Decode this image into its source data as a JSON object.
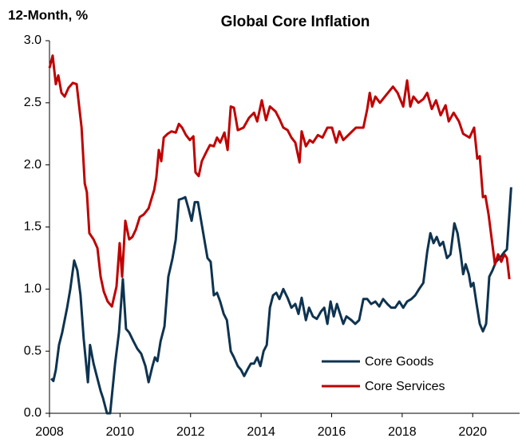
{
  "chart_data": {
    "type": "line",
    "title": "Global Core Inflation",
    "y_label": "12-Month, %",
    "xlim": [
      2008,
      2021.33
    ],
    "xticks": [
      2008,
      2010,
      2012,
      2014,
      2016,
      2018,
      2020
    ],
    "ylim": [
      0,
      3
    ],
    "yticks": [
      {
        "value": 0,
        "label": "0.0"
      },
      0.5,
      {
        "value": 1,
        "label": "1.0"
      },
      1.5,
      {
        "value": 2,
        "label": "2.0"
      },
      2.5,
      {
        "value": 3,
        "label": "3.0"
      }
    ],
    "grid": false,
    "legend": "lower right",
    "series": [
      {
        "name": "Core Goods",
        "color": "#0e3350",
        "x": [
          2008.05,
          2008.11,
          2008.18,
          2008.27,
          2008.36,
          2008.5,
          2008.59,
          2008.7,
          2008.79,
          2008.88,
          2008.97,
          2009.09,
          2009.15,
          2009.25,
          2009.34,
          2009.45,
          2009.52,
          2009.63,
          2009.72,
          2009.86,
          2009.97,
          2010.08,
          2010.17,
          2010.26,
          2010.38,
          2010.49,
          2010.6,
          2010.72,
          2010.81,
          2010.92,
          2010.99,
          2011.06,
          2011.15,
          2011.26,
          2011.37,
          2011.49,
          2011.58,
          2011.67,
          2011.78,
          2011.85,
          2011.94,
          2012.03,
          2012.12,
          2012.21,
          2012.3,
          2012.39,
          2012.48,
          2012.57,
          2012.66,
          2012.75,
          2012.84,
          2012.94,
          2013.03,
          2013.14,
          2013.23,
          2013.34,
          2013.43,
          2013.52,
          2013.61,
          2013.71,
          2013.8,
          2013.89,
          2013.98,
          2014.07,
          2014.16,
          2014.25,
          2014.34,
          2014.43,
          2014.52,
          2014.63,
          2014.75,
          2014.86,
          2014.97,
          2015.06,
          2015.15,
          2015.27,
          2015.36,
          2015.47,
          2015.58,
          2015.7,
          2015.79,
          2015.88,
          2015.97,
          2016.06,
          2016.15,
          2016.24,
          2016.33,
          2016.42,
          2016.56,
          2016.67,
          2016.78,
          2016.9,
          2017.01,
          2017.12,
          2017.24,
          2017.35,
          2017.46,
          2017.58,
          2017.69,
          2017.8,
          2017.92,
          2018.03,
          2018.14,
          2018.26,
          2018.37,
          2018.48,
          2018.6,
          2018.71,
          2018.8,
          2018.89,
          2018.98,
          2019.07,
          2019.16,
          2019.27,
          2019.37,
          2019.48,
          2019.57,
          2019.66,
          2019.73,
          2019.8,
          2019.89,
          2019.95,
          2020.02,
          2020.11,
          2020.2,
          2020.29,
          2020.38,
          2020.47,
          2020.56,
          2020.66,
          2020.77,
          2020.9,
          2020.97,
          2021.09
        ],
        "values": [
          0.28,
          0.26,
          0.35,
          0.55,
          0.65,
          0.85,
          1.0,
          1.23,
          1.15,
          0.95,
          0.6,
          0.25,
          0.55,
          0.4,
          0.3,
          0.18,
          0.12,
          0.0,
          0.0,
          0.4,
          0.65,
          1.08,
          0.68,
          0.65,
          0.58,
          0.52,
          0.48,
          0.38,
          0.25,
          0.38,
          0.45,
          0.42,
          0.58,
          0.7,
          1.1,
          1.25,
          1.4,
          1.72,
          1.73,
          1.74,
          1.65,
          1.55,
          1.7,
          1.7,
          1.55,
          1.4,
          1.25,
          1.22,
          0.95,
          0.97,
          0.9,
          0.8,
          0.75,
          0.5,
          0.45,
          0.38,
          0.35,
          0.3,
          0.35,
          0.4,
          0.4,
          0.45,
          0.38,
          0.5,
          0.55,
          0.85,
          0.95,
          0.97,
          0.92,
          1.0,
          0.93,
          0.85,
          0.88,
          0.8,
          0.93,
          0.75,
          0.85,
          0.78,
          0.76,
          0.82,
          0.85,
          0.72,
          0.9,
          0.78,
          0.88,
          0.8,
          0.72,
          0.78,
          0.75,
          0.72,
          0.75,
          0.92,
          0.92,
          0.88,
          0.9,
          0.86,
          0.92,
          0.88,
          0.85,
          0.85,
          0.9,
          0.85,
          0.9,
          0.92,
          0.95,
          1.0,
          1.05,
          1.3,
          1.45,
          1.37,
          1.42,
          1.35,
          1.38,
          1.25,
          1.28,
          1.53,
          1.45,
          1.28,
          1.12,
          1.2,
          1.12,
          1.02,
          1.05,
          0.88,
          0.72,
          0.66,
          0.72,
          1.1,
          1.15,
          1.22,
          1.25,
          1.3,
          1.32,
          1.82
        ]
      },
      {
        "name": "Core Services",
        "color": "#c00000",
        "x": [
          2008.0,
          2008.09,
          2008.18,
          2008.25,
          2008.34,
          2008.43,
          2008.54,
          2008.66,
          2008.77,
          2008.91,
          2009.0,
          2009.06,
          2009.13,
          2009.25,
          2009.36,
          2009.45,
          2009.54,
          2009.65,
          2009.77,
          2009.9,
          2009.99,
          2010.06,
          2010.15,
          2010.26,
          2010.35,
          2010.45,
          2010.56,
          2010.67,
          2010.81,
          2010.97,
          2011.03,
          2011.1,
          2011.17,
          2011.24,
          2011.35,
          2011.46,
          2011.58,
          2011.67,
          2011.76,
          2011.87,
          2011.98,
          2012.08,
          2012.14,
          2012.23,
          2012.32,
          2012.44,
          2012.55,
          2012.66,
          2012.75,
          2012.84,
          2012.96,
          2013.05,
          2013.14,
          2013.23,
          2013.34,
          2013.5,
          2013.66,
          2013.8,
          2013.89,
          2014.02,
          2014.14,
          2014.25,
          2014.41,
          2014.52,
          2014.63,
          2014.75,
          2014.86,
          2014.97,
          2015.09,
          2015.15,
          2015.27,
          2015.38,
          2015.47,
          2015.61,
          2015.74,
          2015.88,
          2016.01,
          2016.13,
          2016.22,
          2016.33,
          2016.51,
          2016.69,
          2016.9,
          2017.01,
          2017.08,
          2017.15,
          2017.24,
          2017.37,
          2017.51,
          2017.74,
          2017.87,
          2018.03,
          2018.14,
          2018.23,
          2018.32,
          2018.46,
          2018.6,
          2018.71,
          2018.84,
          2018.96,
          2019.09,
          2019.23,
          2019.32,
          2019.46,
          2019.61,
          2019.73,
          2019.91,
          2020.04,
          2020.13,
          2020.2,
          2020.29,
          2020.36,
          2020.45,
          2020.54,
          2020.63,
          2020.72,
          2020.81,
          2020.9,
          2020.97,
          2021.04
        ],
        "values": [
          2.78,
          2.88,
          2.65,
          2.72,
          2.58,
          2.55,
          2.62,
          2.66,
          2.65,
          2.3,
          1.85,
          1.78,
          1.45,
          1.4,
          1.33,
          1.1,
          0.98,
          0.9,
          0.86,
          1.02,
          1.37,
          1.1,
          1.55,
          1.4,
          1.42,
          1.48,
          1.58,
          1.6,
          1.65,
          1.8,
          1.9,
          2.12,
          2.03,
          2.22,
          2.25,
          2.27,
          2.26,
          2.33,
          2.3,
          2.24,
          2.2,
          2.23,
          1.94,
          1.91,
          2.03,
          2.1,
          2.16,
          2.15,
          2.22,
          2.18,
          2.26,
          2.12,
          2.47,
          2.46,
          2.28,
          2.3,
          2.38,
          2.42,
          2.35,
          2.52,
          2.36,
          2.47,
          2.43,
          2.37,
          2.3,
          2.28,
          2.22,
          2.18,
          2.02,
          2.27,
          2.15,
          2.2,
          2.18,
          2.24,
          2.22,
          2.3,
          2.3,
          2.18,
          2.27,
          2.2,
          2.25,
          2.3,
          2.3,
          2.45,
          2.58,
          2.47,
          2.55,
          2.5,
          2.55,
          2.63,
          2.58,
          2.47,
          2.68,
          2.47,
          2.55,
          2.5,
          2.53,
          2.58,
          2.45,
          2.52,
          2.4,
          2.48,
          2.35,
          2.42,
          2.35,
          2.25,
          2.22,
          2.3,
          2.05,
          2.07,
          1.74,
          1.75,
          1.6,
          1.4,
          1.2,
          1.28,
          1.22,
          1.28,
          1.25,
          1.08
        ]
      }
    ]
  }
}
